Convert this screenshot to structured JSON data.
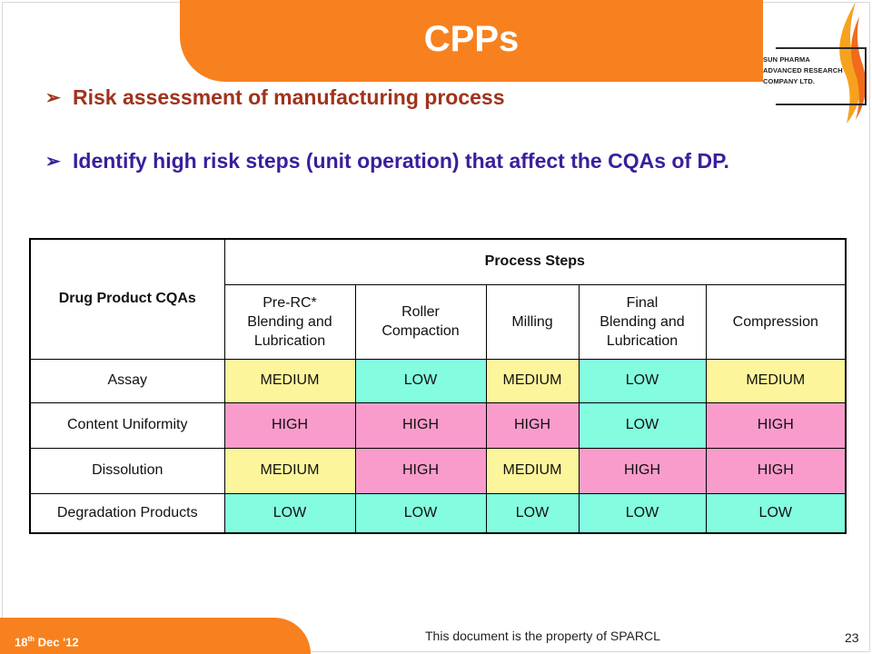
{
  "slide": {
    "title": "CPPs",
    "logo_text": [
      "SUN PHARMA",
      "ADVANCED RESEARCH",
      "COMPANY LTD."
    ],
    "bullets": [
      "Risk assessment of manufacturing process",
      "Identify high risk steps (unit operation) that affect the CQAs of DP."
    ]
  },
  "table": {
    "row_header": "Drug Product CQAs",
    "group_header": "Process Steps",
    "columns": [
      [
        "Pre-RC*",
        "Blending and",
        "Lubrication"
      ],
      [
        "Roller",
        "Compaction"
      ],
      [
        "Milling"
      ],
      [
        "Final",
        "Blending and",
        "Lubrication"
      ],
      [
        "Compression"
      ]
    ],
    "rows": [
      {
        "label": "Assay",
        "values": [
          "MEDIUM",
          "LOW",
          "MEDIUM",
          "LOW",
          "MEDIUM"
        ]
      },
      {
        "label": "Content Uniformity",
        "values": [
          "HIGH",
          "HIGH",
          "HIGH",
          "LOW",
          "HIGH"
        ]
      },
      {
        "label": "Dissolution",
        "values": [
          "MEDIUM",
          "HIGH",
          "MEDIUM",
          "HIGH",
          "HIGH"
        ]
      },
      {
        "label": "Degradation Products",
        "values": [
          "LOW",
          "LOW",
          "LOW",
          "LOW",
          "LOW"
        ]
      }
    ]
  },
  "colors": {
    "accent": "#f7811e",
    "HIGH": "#f99ccc",
    "MEDIUM": "#fdf59c",
    "LOW": "#84fcdf"
  },
  "footer": {
    "date_day": "18",
    "date_suffix": "th",
    "date_rest": " Dec '12",
    "note": "This document is the property of SPARCL",
    "page_number": "23"
  }
}
